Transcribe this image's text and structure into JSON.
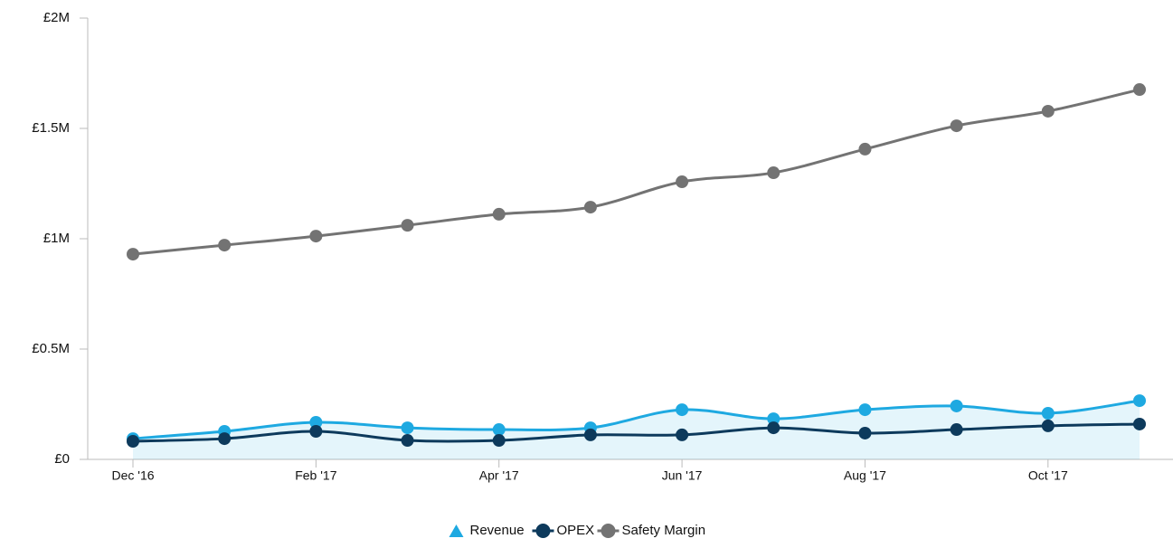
{
  "chart_data": {
    "type": "line",
    "categories": [
      "Dec '16",
      null,
      "Feb '17",
      null,
      "Apr '17",
      null,
      "Jun '17",
      null,
      "Aug '17",
      null,
      "Oct '17",
      null
    ],
    "series": [
      {
        "name": "Revenue",
        "color": "#1ea9e1",
        "area": true,
        "marker": "triangle",
        "values": [
          94000,
          127000,
          168000,
          143000,
          135000,
          143000,
          225000,
          184000,
          225000,
          242000,
          209000,
          266000
        ]
      },
      {
        "name": "OPEX",
        "color": "#0d3a5c",
        "marker": "circle",
        "values": [
          82000,
          94000,
          127000,
          86000,
          86000,
          111000,
          111000,
          143000,
          119000,
          135000,
          152000,
          160000
        ]
      },
      {
        "name": "Safety Margin",
        "color": "#737373",
        "marker": "circle",
        "values": [
          930000,
          971000,
          1012000,
          1061000,
          1111000,
          1143000,
          1258000,
          1299000,
          1406000,
          1512000,
          1578000,
          1676000
        ]
      }
    ],
    "ylim": [
      0,
      2000000
    ],
    "yticks": [
      {
        "value": 0,
        "label": "£0"
      },
      {
        "value": 500000,
        "label": "£0.5M"
      },
      {
        "value": 1000000,
        "label": "£1M"
      },
      {
        "value": 1500000,
        "label": "£1.5M"
      },
      {
        "value": 2000000,
        "label": "£2M"
      }
    ],
    "legend": "bottom"
  }
}
